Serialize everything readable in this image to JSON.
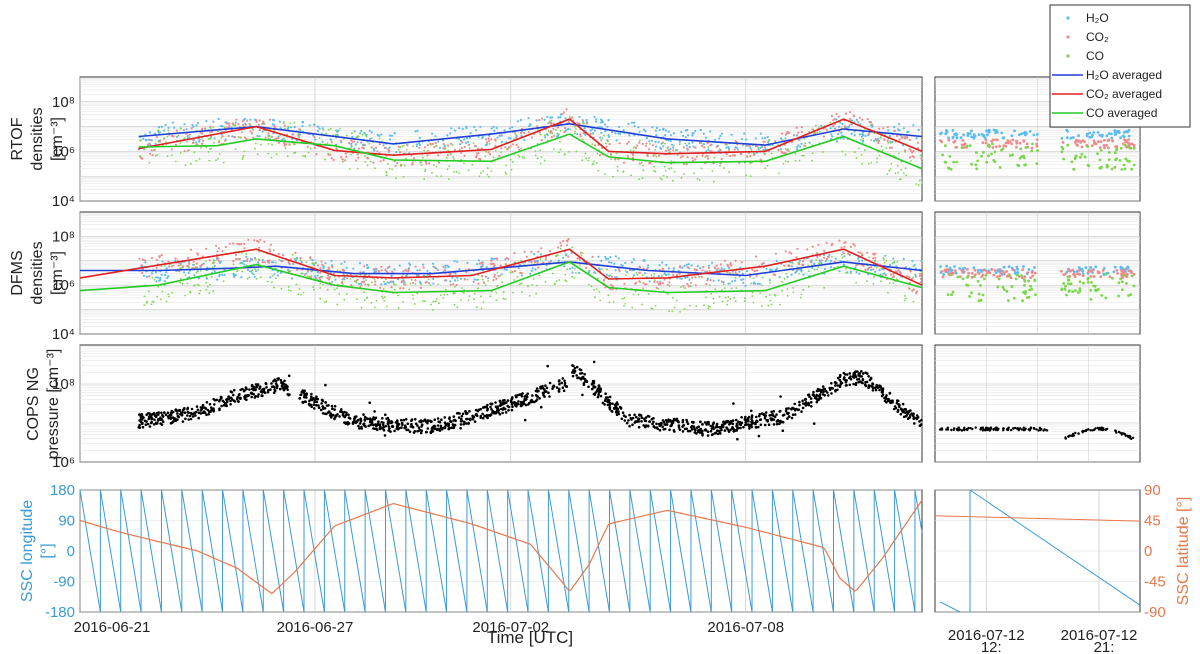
{
  "chart_data": [
    {
      "id": "rtof",
      "type": "scatter+line",
      "ylabel_lines": [
        "RTOF",
        "densities",
        "[cm⁻³]"
      ],
      "yscale": "log",
      "ylim": [
        10000,
        1000000000
      ],
      "yticks": [
        {
          "label": "10⁴",
          "v": 10000
        },
        {
          "label": "10⁶",
          "v": 1000000
        },
        {
          "label": "10⁸",
          "v": 100000000
        }
      ],
      "x_days": [
        0,
        21.5
      ],
      "series": [
        {
          "name": "H2O averaged",
          "color": "#1f3fd6",
          "x": [
            1.5,
            4.5,
            8,
            10.5,
            12.5,
            15,
            17.5,
            19.5,
            21.5
          ],
          "y": [
            4000000.0,
            10000000.0,
            2000000.0,
            5000000.0,
            13000000.0,
            3200000.0,
            1800000.0,
            8000000.0,
            4000000.0
          ]
        },
        {
          "name": "CO2 averaged",
          "color": "#e02020",
          "x": [
            1.5,
            4.5,
            6.5,
            8,
            10.5,
            12.5,
            13.5,
            15,
            17.5,
            19.5,
            21.5
          ],
          "y": [
            1300000.0,
            10000000.0,
            1100000.0,
            700000.0,
            1200000.0,
            20000000.0,
            1000000.0,
            800000.0,
            1000000.0,
            20000000.0,
            1000000.0
          ]
        },
        {
          "name": "CO averaged",
          "color": "#22cc22",
          "x": [
            1.5,
            3.5,
            4.5,
            6.5,
            8,
            10.5,
            12.5,
            13.5,
            15,
            17.5,
            19.5,
            21.5
          ],
          "y": [
            1500000.0,
            1700000.0,
            3200000.0,
            1700000.0,
            450000.0,
            400000.0,
            5000000.0,
            600000.0,
            350000.0,
            400000.0,
            4000000.0,
            200000.0
          ]
        }
      ],
      "scatter": [
        {
          "name": "H2O",
          "color": "#5bbcf0",
          "level": 5000000.0
        },
        {
          "name": "CO2",
          "color": "#f08a8a",
          "level": 2000000.0
        },
        {
          "name": "CO",
          "color": "#7ad64a",
          "level": 600000.0
        }
      ]
    },
    {
      "id": "dfms",
      "type": "scatter+line",
      "ylabel_lines": [
        "DFMS",
        "densities",
        "[cm⁻³]"
      ],
      "yscale": "log",
      "ylim": [
        10000,
        1000000000
      ],
      "yticks": [
        {
          "label": "10⁴",
          "v": 10000
        },
        {
          "label": "10⁶",
          "v": 1000000
        },
        {
          "label": "10⁸",
          "v": 100000000
        }
      ],
      "series": [
        {
          "name": "H2O averaged",
          "color": "#1f3fd6",
          "x": [
            0,
            2,
            4,
            5,
            7,
            9,
            12.5,
            14.5,
            17,
            19.5,
            21.5
          ],
          "y": [
            4000000.0,
            4000000.0,
            5000000.0,
            6000000.0,
            3000000.0,
            3000000.0,
            9000000.0,
            4000000.0,
            2500000.0,
            9000000.0,
            4000000.0
          ]
        },
        {
          "name": "CO2 averaged",
          "color": "#e02020",
          "x": [
            0,
            4.5,
            6.5,
            8,
            10,
            12.5,
            13.5,
            15,
            17.5,
            19.5,
            21.5
          ],
          "y": [
            2000000.0,
            30000000.0,
            2500000.0,
            2000000.0,
            2500000.0,
            30000000.0,
            1800000.0,
            2000000.0,
            6000000.0,
            30000000.0,
            1000000.0
          ]
        },
        {
          "name": "CO averaged",
          "color": "#22cc22",
          "x": [
            0,
            2,
            4.5,
            6.5,
            8,
            10.5,
            12.5,
            13.5,
            15,
            17.5,
            19.5,
            21.5
          ],
          "y": [
            600000.0,
            1000000.0,
            7000000.0,
            1000000.0,
            500000.0,
            600000.0,
            9000000.0,
            800000.0,
            500000.0,
            600000.0,
            6000000.0,
            800000.0
          ]
        }
      ],
      "scatter": [
        {
          "name": "H2O",
          "color": "#5bbcf0",
          "level": 4000000.0
        },
        {
          "name": "CO2",
          "color": "#f08a8a",
          "level": 3000000.0
        },
        {
          "name": "CO",
          "color": "#7ad64a",
          "level": 800000.0
        }
      ]
    },
    {
      "id": "cops",
      "type": "scatter",
      "ylabel_lines": [
        "COPS NG",
        "pressure [cm⁻³]"
      ],
      "yscale": "log",
      "ylim": [
        1000000,
        1000000000
      ],
      "yticks": [
        {
          "label": "10⁶",
          "v": 1000000
        },
        {
          "label": "10⁸",
          "v": 100000000
        }
      ],
      "trend": {
        "x": [
          1.5,
          3,
          4,
          5.2,
          5.3,
          7,
          9,
          10,
          11,
          12.4,
          12.6,
          14,
          16,
          18,
          19.5,
          20,
          21.5
        ],
        "y": [
          11000000.0,
          18000000.0,
          50000000.0,
          100000000.0,
          80000000.0,
          10000000.0,
          8000000.0,
          15000000.0,
          30000000.0,
          100000000.0,
          250000000.0,
          12000000.0,
          7000000.0,
          15000000.0,
          130000000.0,
          150000000.0,
          9000000.0
        ]
      },
      "color": "#000000"
    },
    {
      "id": "ssc",
      "type": "line",
      "ylabel_left": "SSC longitude\n[°]",
      "ylabel_right": "SSC latitude [°]",
      "ylim_left": [
        -180,
        180
      ],
      "ylim_right": [
        -90,
        90
      ],
      "yticks_left": [
        "180",
        "90",
        "0",
        "-90",
        "-180"
      ],
      "yticks_right": [
        "90",
        "45",
        "0",
        "-45",
        "-90"
      ],
      "longitude_color": "#3a9ad9",
      "latitude_color": "#e8774a",
      "rotation_period_days": 0.52,
      "latitude": {
        "x": [
          0,
          1,
          2,
          3,
          4,
          4.9,
          5.5,
          6.5,
          8,
          10,
          11.5,
          12.3,
          12.5,
          13,
          13.5,
          15,
          17,
          19,
          19.4,
          19.8,
          20.5,
          21.5
        ],
        "y": [
          45,
          28,
          14,
          0,
          -25,
          -63,
          -30,
          37,
          70,
          40,
          10,
          -45,
          -60,
          -20,
          40,
          60,
          35,
          5,
          -40,
          -60,
          -10,
          75
        ]
      }
    }
  ],
  "xaxis": {
    "ticks": [
      {
        "label": "2016-06-21",
        "d": 0
      },
      {
        "label": "2016-06-27",
        "d": 6
      },
      {
        "label": "2016-07-02",
        "d": 11
      },
      {
        "label": "2016-07-08",
        "d": 17
      }
    ],
    "label": "Time  [UTC]"
  },
  "right_xaxis": {
    "ticks": [
      {
        "line1": "2016-07-12",
        "line2": "12:",
        "t": 0.25
      },
      {
        "line1": "2016-07-12",
        "line2": "21:",
        "t": 0.8
      }
    ]
  },
  "legend": [
    {
      "label": "H₂O",
      "kind": "dots",
      "color": "#5bbcf0"
    },
    {
      "label": "CO₂",
      "kind": "dots",
      "color": "#f08a8a"
    },
    {
      "label": "CO",
      "kind": "dots",
      "color": "#7ad64a"
    },
    {
      "label": "H₂O averaged",
      "kind": "line",
      "color": "#1f3fd6"
    },
    {
      "label": "CO₂ averaged",
      "kind": "line",
      "color": "#e02020"
    },
    {
      "label": "CO averaged",
      "kind": "line",
      "color": "#22cc22"
    }
  ]
}
